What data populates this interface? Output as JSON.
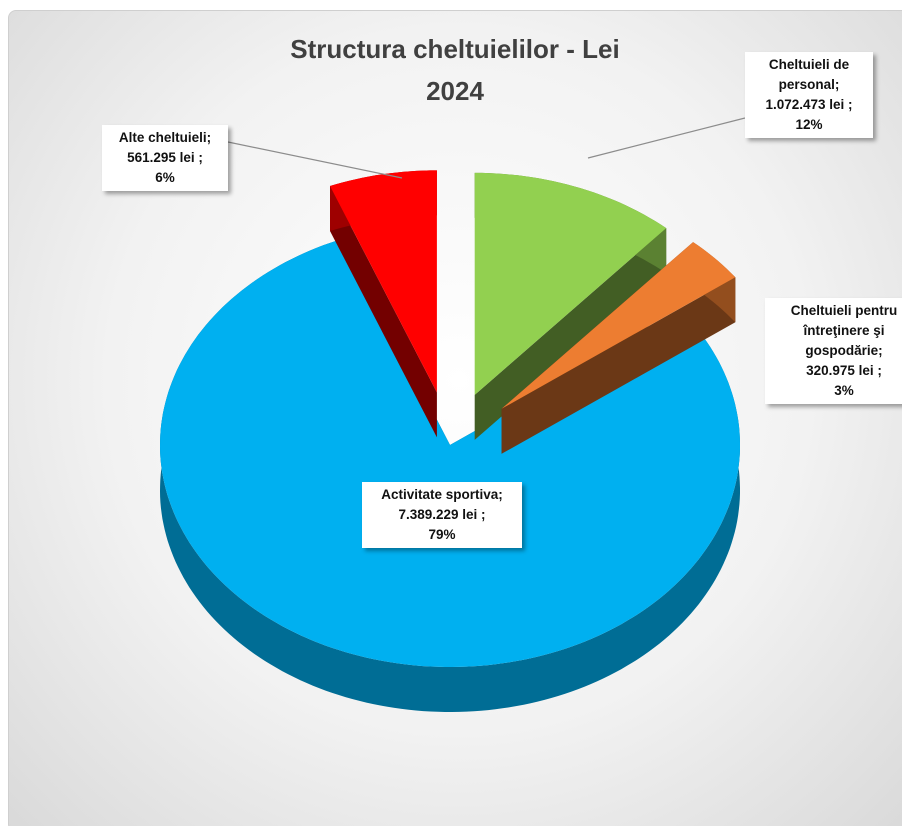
{
  "chart_data": {
    "type": "pie",
    "title": "Structura cheltuielilor - Lei",
    "subtitle": "2024",
    "categories": [
      "Cheltuieli de personal",
      "Cheltuieli pentru întreţinere şi gospodărie",
      "Activitate sportiva",
      "Alte cheltuieli"
    ],
    "values": [
      1072473,
      320975,
      7389229,
      561295
    ],
    "value_labels": [
      "1.072.473 lei",
      "320.975 lei",
      "7.389.229 lei",
      "561.295 lei"
    ],
    "percent_labels": [
      "12%",
      "3%",
      "79%",
      "6%"
    ],
    "label_separator": ";",
    "colors": [
      "#92d050",
      "#ed7d31",
      "#00b0f0",
      "#ff0000"
    ],
    "explode": [
      true,
      true,
      false,
      true
    ],
    "style": "3d"
  }
}
